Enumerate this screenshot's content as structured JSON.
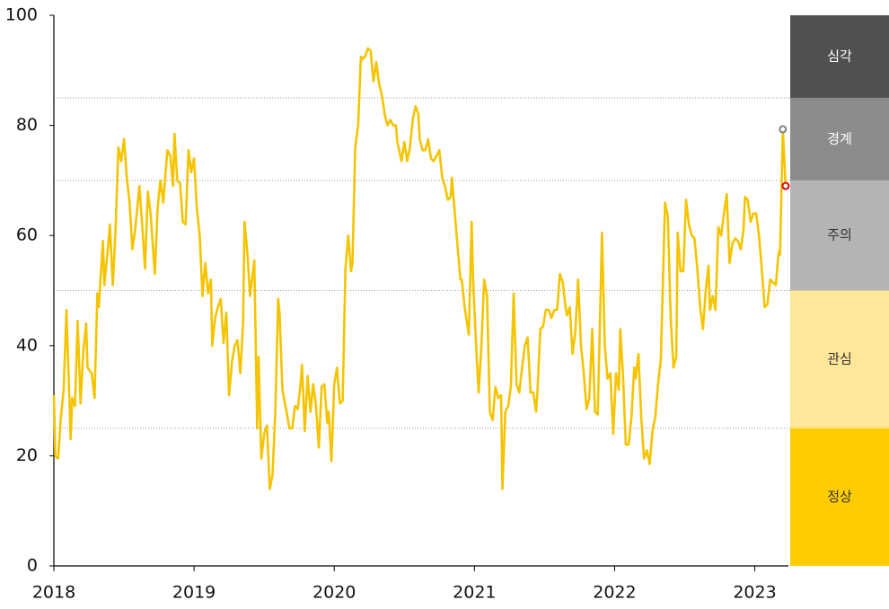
{
  "chart_data": {
    "type": "line",
    "color": "#f5c400",
    "x": [
      2018.0,
      2018.01,
      2018.03,
      2018.05,
      2018.07,
      2018.09,
      2018.12,
      2018.13,
      2018.15,
      2018.17,
      2018.19,
      2018.21,
      2018.23,
      2018.24,
      2018.27,
      2018.29,
      2018.31,
      2018.32,
      2018.35,
      2018.36,
      2018.39,
      2018.4,
      2018.42,
      2018.44,
      2018.46,
      2018.48,
      2018.5,
      2018.52,
      2018.54,
      2018.56,
      2018.58,
      2018.61,
      2018.63,
      2018.65,
      2018.67,
      2018.69,
      2018.72,
      2018.74,
      2018.76,
      2018.78,
      2018.81,
      2018.83,
      2018.85,
      2018.86,
      2018.88,
      2018.9,
      2018.92,
      2018.94,
      2018.96,
      2018.98,
      2019.0,
      2019.02,
      2019.04,
      2019.06,
      2019.08,
      2019.1,
      2019.12,
      2019.13,
      2019.15,
      2019.17,
      2019.19,
      2019.21,
      2019.23,
      2019.25,
      2019.27,
      2019.29,
      2019.31,
      2019.33,
      2019.35,
      2019.36,
      2019.38,
      2019.4,
      2019.43,
      2019.45,
      2019.46,
      2019.48,
      2019.5,
      2019.52,
      2019.54,
      2019.56,
      2019.58,
      2019.6,
      2019.61,
      2019.63,
      2019.66,
      2019.68,
      2019.7,
      2019.72,
      2019.74,
      2019.76,
      2019.77,
      2019.79,
      2019.81,
      2019.83,
      2019.85,
      2019.87,
      2019.89,
      2019.91,
      2019.93,
      2019.95,
      2019.96,
      2019.98,
      2020.0,
      2020.02,
      2020.04,
      2020.06,
      2020.08,
      2020.1,
      2020.12,
      2020.13,
      2020.15,
      2020.17,
      2020.19,
      2020.2,
      2020.22,
      2020.24,
      2020.26,
      2020.28,
      2020.3,
      2020.32,
      2020.34,
      2020.36,
      2020.38,
      2020.4,
      2020.42,
      2020.44,
      2020.45,
      2020.48,
      2020.5,
      2020.52,
      2020.54,
      2020.56,
      2020.58,
      2020.6,
      2020.61,
      2020.63,
      2020.65,
      2020.67,
      2020.69,
      2020.71,
      2020.73,
      2020.75,
      2020.77,
      2020.79,
      2020.81,
      2020.83,
      2020.84,
      2020.86,
      2020.88,
      2020.9,
      2020.91,
      2020.93,
      2020.96,
      2020.98,
      2020.99,
      2021.01,
      2021.03,
      2021.05,
      2021.07,
      2021.09,
      2021.11,
      2021.13,
      2021.15,
      2021.17,
      2021.19,
      2021.2,
      2021.22,
      2021.24,
      2021.26,
      2021.28,
      2021.3,
      2021.32,
      2021.34,
      2021.36,
      2021.38,
      2021.4,
      2021.42,
      2021.44,
      2021.45,
      2021.47,
      2021.49,
      2021.51,
      2021.53,
      2021.55,
      2021.57,
      2021.59,
      2021.61,
      2021.63,
      2021.65,
      2021.66,
      2021.68,
      2021.7,
      2021.72,
      2021.74,
      2021.76,
      2021.78,
      2021.8,
      2021.82,
      2021.84,
      2021.86,
      2021.88,
      2021.91,
      2021.93,
      2021.95,
      2021.97,
      2021.99,
      2022.01,
      2022.03,
      2022.04,
      2022.06,
      2022.08,
      2022.1,
      2022.12,
      2022.14,
      2022.15,
      2022.17,
      2022.19,
      2022.21,
      2022.23,
      2022.25,
      2022.27,
      2022.29,
      2022.31,
      2022.33,
      2022.36,
      2022.38,
      2022.4,
      2022.42,
      2022.44,
      2022.45,
      2022.47,
      2022.49,
      2022.51,
      2022.53,
      2022.55,
      2022.57,
      2022.59,
      2022.61,
      2022.63,
      2022.65,
      2022.67,
      2022.68,
      2022.7,
      2022.72,
      2022.74,
      2022.76,
      2022.78,
      2022.8,
      2022.82,
      2022.84,
      2022.86,
      2022.88,
      2022.9,
      2022.92,
      2022.93,
      2022.95,
      2022.97,
      2022.99,
      2023.01,
      2023.03,
      2023.05,
      2023.07,
      2023.09,
      2023.11,
      2023.13,
      2023.15,
      2023.17,
      2023.18,
      2023.2,
      2023.22
    ],
    "values": [
      31,
      20,
      19.5,
      27,
      32,
      46.5,
      23,
      30.5,
      29,
      44.5,
      29.5,
      39,
      44,
      36,
      35,
      30.5,
      49.5,
      47,
      59,
      51,
      59,
      62,
      51,
      61,
      76,
      73.5,
      77.5,
      70.5,
      66,
      57.5,
      61,
      69,
      62,
      54,
      68,
      64,
      53,
      65,
      70,
      66,
      75.5,
      74.5,
      69,
      78.5,
      70,
      69.5,
      62.5,
      62,
      75.5,
      71.5,
      74,
      65,
      60,
      49,
      55,
      49.5,
      52,
      40,
      45,
      47,
      48.5,
      40.5,
      46,
      31,
      37,
      40,
      41,
      35,
      44,
      62.5,
      57,
      49,
      55.5,
      25,
      38,
      19.5,
      24,
      25.5,
      14,
      16.5,
      28,
      48.5,
      46,
      32,
      28,
      25,
      25,
      29,
      28.5,
      33,
      36.5,
      24.5,
      34.5,
      28,
      33,
      29,
      21.5,
      32.5,
      33,
      26,
      28,
      19,
      33,
      36,
      29.5,
      30,
      54,
      60,
      53.5,
      55,
      76,
      80,
      92.5,
      92,
      92.5,
      94,
      93.5,
      88,
      91.5,
      87.5,
      85.5,
      82,
      80,
      81,
      80,
      80,
      77,
      73.5,
      77,
      73.5,
      76,
      81,
      83.5,
      82,
      77.5,
      75.5,
      75.5,
      77.5,
      74,
      73.5,
      74.5,
      75.5,
      70.5,
      69,
      66.5,
      67,
      70.5,
      64,
      58,
      52,
      52,
      47,
      42,
      62.5,
      52,
      41,
      31.5,
      40,
      52,
      49,
      28,
      26.5,
      32.5,
      30.5,
      31,
      14,
      28,
      29,
      32.5,
      49.5,
      33,
      31.5,
      36,
      40,
      41.5,
      31.5,
      31.5,
      28,
      32,
      43,
      43.5,
      46.5,
      46.5,
      45,
      46.5,
      46.5,
      53,
      51.5,
      47,
      45.5,
      47,
      38.5,
      42.5,
      52,
      40,
      35,
      28.5,
      30.5,
      43,
      28,
      27.5,
      60.5,
      40,
      34,
      35,
      24,
      35,
      32,
      43,
      34.5,
      22,
      22,
      27,
      36,
      34,
      38.5,
      27,
      19.5,
      21,
      18.5,
      24.5,
      27,
      33,
      37.5,
      66,
      63.5,
      45,
      36,
      38,
      60.5,
      53.5,
      53.5,
      66.5,
      62,
      60,
      59.5,
      54,
      47,
      43,
      50,
      54.5,
      46.5,
      49,
      46.5,
      61.5,
      60,
      64,
      67.5,
      55,
      58.5,
      59.5,
      59,
      57.5,
      61,
      67,
      66.5,
      62.5,
      64,
      64,
      60,
      54,
      47,
      47.5,
      52,
      51.5,
      51,
      57,
      56.5,
      79,
      69
    ],
    "markers": [
      {
        "x": 2023.2,
        "y": 79.3,
        "color": "#808080"
      },
      {
        "x": 2023.22,
        "y": 69,
        "color": "#e00000"
      }
    ],
    "xlim": [
      2018,
      2023.24
    ],
    "xticks": [
      2018,
      2019,
      2020,
      2021,
      2022,
      2023
    ],
    "ylim": [
      0,
      100
    ],
    "yticks": [
      0,
      20,
      40,
      60,
      80,
      100
    ],
    "bands": [
      {
        "label": "심각",
        "from": 85,
        "to": 100,
        "color": "#505050",
        "text_color": "#ffffff"
      },
      {
        "label": "경계",
        "from": 70,
        "to": 85,
        "color": "#8c8c8c",
        "text_color": "#ffffff"
      },
      {
        "label": "주의",
        "from": 50,
        "to": 70,
        "color": "#b4b4b4",
        "text_color": "#333333"
      },
      {
        "label": "관심",
        "from": 25,
        "to": 50,
        "color": "#ffe699",
        "text_color": "#333333"
      },
      {
        "label": "정상",
        "from": 0,
        "to": 25,
        "color": "#ffcc00",
        "text_color": "#333333"
      }
    ]
  }
}
